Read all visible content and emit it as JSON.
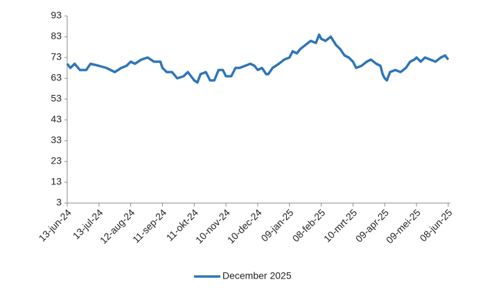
{
  "chart_data": {
    "type": "line",
    "x": [
      "2024-06-13",
      "2024-06-16",
      "2024-06-20",
      "2024-06-25",
      "2024-07-01",
      "2024-07-05",
      "2024-07-13",
      "2024-07-20",
      "2024-07-28",
      "2024-08-03",
      "2024-08-08",
      "2024-08-12",
      "2024-08-16",
      "2024-08-22",
      "2024-08-28",
      "2024-09-03",
      "2024-09-09",
      "2024-09-11",
      "2024-09-15",
      "2024-09-20",
      "2024-09-25",
      "2024-10-01",
      "2024-10-05",
      "2024-10-11",
      "2024-10-14",
      "2024-10-17",
      "2024-10-22",
      "2024-10-26",
      "2024-10-30",
      "2024-11-03",
      "2024-11-07",
      "2024-11-10",
      "2024-11-15",
      "2024-11-19",
      "2024-11-23",
      "2024-11-28",
      "2024-12-03",
      "2024-12-07",
      "2024-12-10",
      "2024-12-14",
      "2024-12-18",
      "2024-12-20",
      "2024-12-24",
      "2024-12-30",
      "2025-01-04",
      "2025-01-09",
      "2025-01-12",
      "2025-01-16",
      "2025-01-19",
      "2025-01-24",
      "2025-01-29",
      "2025-02-03",
      "2025-02-06",
      "2025-02-08",
      "2025-02-12",
      "2025-02-17",
      "2025-02-22",
      "2025-02-26",
      "2025-03-02",
      "2025-03-06",
      "2025-03-10",
      "2025-03-13",
      "2025-03-18",
      "2025-03-23",
      "2025-03-27",
      "2025-04-01",
      "2025-04-05",
      "2025-04-07",
      "2025-04-09",
      "2025-04-11",
      "2025-04-14",
      "2025-04-19",
      "2025-04-24",
      "2025-04-29",
      "2025-05-03",
      "2025-05-07",
      "2025-05-09",
      "2025-05-13",
      "2025-05-17",
      "2025-05-22",
      "2025-05-27",
      "2025-06-01",
      "2025-06-05",
      "2025-06-08"
    ],
    "series": [
      {
        "name": "December 2025",
        "color": "#2e75b6",
        "values": [
          70,
          68,
          70,
          67,
          67,
          70,
          69,
          68,
          66,
          68,
          69,
          71,
          70,
          72,
          73,
          71,
          71,
          68,
          66,
          66,
          63,
          64,
          66,
          62,
          61,
          65,
          66,
          62,
          62,
          67,
          67,
          64,
          64,
          68,
          68,
          69,
          70,
          69,
          67,
          68,
          65,
          65,
          68,
          70,
          72,
          73,
          76,
          75,
          77,
          79,
          81,
          80,
          84,
          82,
          81,
          83,
          79,
          77,
          74,
          73,
          71,
          68,
          69,
          71,
          72,
          70,
          69,
          65,
          63,
          62,
          66,
          67,
          66,
          68,
          71,
          72,
          73,
          71,
          73,
          72,
          71,
          73,
          74,
          72
        ]
      }
    ],
    "ylim": [
      3,
      93
    ],
    "yticks": [
      3,
      13,
      23,
      33,
      43,
      53,
      63,
      73,
      83,
      93
    ],
    "xlim": [
      "2024-06-13",
      "2025-06-10"
    ],
    "xticks": [
      {
        "value": "2024-06-13",
        "label": "13-jun-24"
      },
      {
        "value": "2024-07-13",
        "label": "13-jul-24"
      },
      {
        "value": "2024-08-12",
        "label": "12-aug-24"
      },
      {
        "value": "2024-09-11",
        "label": "11-sep-24"
      },
      {
        "value": "2024-10-11",
        "label": "11-okt-24"
      },
      {
        "value": "2024-11-10",
        "label": "10-nov-24"
      },
      {
        "value": "2024-12-10",
        "label": "10-dec-24"
      },
      {
        "value": "2025-01-09",
        "label": "09-jan-25"
      },
      {
        "value": "2025-02-08",
        "label": "08-feb-25"
      },
      {
        "value": "2025-03-10",
        "label": "10-mrt-25"
      },
      {
        "value": "2025-04-09",
        "label": "09-apr-25"
      },
      {
        "value": "2025-05-09",
        "label": "09-mei-25"
      },
      {
        "value": "2025-06-08",
        "label": "08-jun-25"
      }
    ],
    "legend": "bottom"
  }
}
